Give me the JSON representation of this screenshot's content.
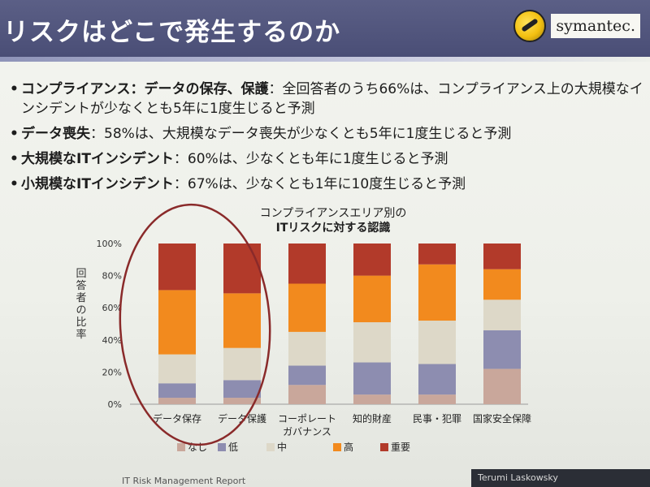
{
  "slide": {
    "title": "リスクはどこで発生するのか",
    "logo_text": "symantec.",
    "bullets": [
      {
        "bold": "コンプライアンス：データの保存、保護",
        "text": "：全回答者のうち66%は、コンプライアンス上の大規模なインシデントが少なくとも5年に1度生じると予測"
      },
      {
        "bold": "データ喪失",
        "text": "：58%は、大規模なデータ喪失が少なくとも5年に1度生じると予測"
      },
      {
        "bold": "大規模なITインシデント",
        "text": "：60%は、少なくとも年に1度生じると予測"
      },
      {
        "bold": "小規模なITインシデント",
        "text": "：67%は、少なくとも1年に10度生じると予測"
      }
    ],
    "footer_left": "IT Risk Management Report",
    "footer_right": "Terumi Laskowsky"
  },
  "colors": {
    "header": "#4d5178",
    "none": "#c9a79b",
    "low": "#8d8db0",
    "mid": "#ddd8c8",
    "high": "#f28a1e",
    "critical": "#b23a2a",
    "annotation": "#8a2a2a"
  },
  "chart_data": {
    "type": "bar",
    "stacked": true,
    "title_line1": "コンプライアンスエリア別の",
    "title_line2": "ITリスクに対する認識",
    "ylabel": "回答者の比率",
    "ylim": [
      0,
      100
    ],
    "yticks": [
      "0%",
      "20%",
      "40%",
      "60%",
      "80%",
      "100%"
    ],
    "categories": [
      "データ保存",
      "データ保護",
      "コーポレート\nガバナンス",
      "知的財産",
      "民事・犯罪",
      "国家安全保障"
    ],
    "series": [
      {
        "name": "なし",
        "values": [
          4,
          4,
          12,
          6,
          6,
          22
        ]
      },
      {
        "name": "低",
        "values": [
          9,
          11,
          12,
          20,
          19,
          24
        ]
      },
      {
        "name": "中",
        "values": [
          18,
          20,
          21,
          25,
          27,
          19
        ]
      },
      {
        "name": "高",
        "values": [
          40,
          34,
          30,
          29,
          35,
          19
        ]
      },
      {
        "name": "重要",
        "values": [
          29,
          31,
          25,
          20,
          13,
          16
        ]
      }
    ],
    "legend_position": "bottom"
  }
}
